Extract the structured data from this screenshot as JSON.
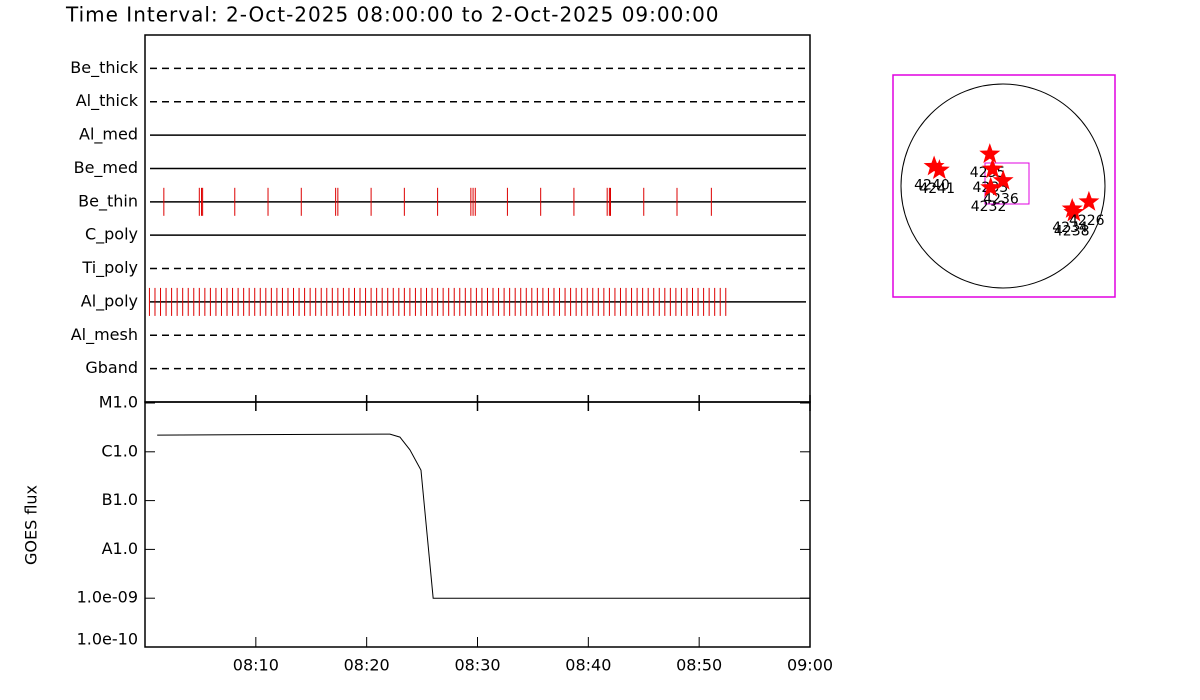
{
  "chart_data": [
    {
      "type": "timeline",
      "title": "Time Interval:  2-Oct-2025 08:00:00 to  2-Oct-2025 09:00:00",
      "xlim": [
        0,
        60
      ],
      "color": "#dd0000",
      "rows": [
        {
          "name": "Be_thick",
          "style": "dashed",
          "times": []
        },
        {
          "name": "Al_thick",
          "style": "dashed",
          "times": []
        },
        {
          "name": "Al_med",
          "style": "solid",
          "times": []
        },
        {
          "name": "Be_med",
          "style": "solid",
          "times": []
        },
        {
          "name": "Be_thin",
          "style": "solid",
          "times": [
            1.7,
            4.9,
            5.1,
            5.2,
            8.1,
            11.1,
            14.1,
            17.2,
            17.4,
            20.4,
            23.4,
            26.4,
            29.4,
            29.6,
            29.8,
            32.7,
            35.7,
            38.7,
            41.7,
            41.9,
            42.0,
            45.0,
            48.0,
            51.1
          ]
        },
        {
          "name": "C_poly",
          "style": "solid",
          "times": []
        },
        {
          "name": "Ti_poly",
          "style": "dashed",
          "times": []
        },
        {
          "name": "Al_poly",
          "style": "solid",
          "times": [
            0.4,
            0.9,
            1.4,
            1.9,
            2.4,
            2.9,
            3.4,
            3.9,
            4.4,
            4.9,
            5.4,
            5.9,
            6.4,
            6.9,
            7.4,
            7.9,
            8.4,
            8.9,
            9.4,
            9.9,
            10.4,
            10.9,
            11.4,
            11.9,
            12.4,
            12.9,
            13.4,
            13.9,
            14.4,
            14.9,
            15.4,
            15.9,
            16.4,
            16.9,
            17.4,
            17.9,
            18.4,
            18.9,
            19.4,
            19.9,
            20.4,
            20.9,
            21.4,
            21.9,
            22.4,
            22.9,
            23.4,
            23.9,
            24.4,
            24.9,
            25.4,
            25.9,
            26.4,
            26.9,
            27.4,
            27.9,
            28.4,
            28.9,
            29.4,
            29.9,
            30.4,
            30.9,
            31.4,
            31.9,
            32.4,
            32.9,
            33.4,
            33.9,
            34.4,
            34.9,
            35.4,
            35.9,
            36.4,
            36.9,
            37.4,
            37.9,
            38.4,
            38.9,
            39.4,
            39.9,
            40.4,
            40.9,
            41.4,
            41.9,
            42.4,
            42.9,
            43.4,
            43.9,
            44.4,
            44.9,
            45.4,
            45.9,
            46.4,
            46.9,
            47.4,
            47.9,
            48.4,
            48.9,
            49.4,
            49.9,
            50.4,
            50.9,
            51.4,
            51.9,
            52.4
          ]
        },
        {
          "name": "Al_mesh",
          "style": "dashed",
          "times": []
        },
        {
          "name": "Gband",
          "style": "dashed",
          "times": []
        }
      ]
    },
    {
      "type": "line",
      "y_label": "GOES flux",
      "color": "#000000",
      "log_y": true,
      "x": [
        1.1,
        10,
        22.1,
        23.0,
        23.9,
        24.9,
        26.0,
        60
      ],
      "values": [
        2.2e-06,
        2.25e-06,
        2.3e-06,
        2e-06,
        1.1e-06,
        4.2e-07,
        1e-09,
        1e-09
      ],
      "xlim": [
        0,
        60
      ],
      "xticks": [
        {
          "value": 10,
          "label": "08:10"
        },
        {
          "value": 20,
          "label": "08:20"
        },
        {
          "value": 30,
          "label": "08:30"
        },
        {
          "value": 40,
          "label": "08:40"
        },
        {
          "value": 50,
          "label": "08:50"
        },
        {
          "value": 60,
          "label": "09:00"
        }
      ],
      "ylim": [
        1e-10,
        1e-05
      ],
      "yticks": [
        {
          "value": 1e-05,
          "label": "M1.0"
        },
        {
          "value": 1e-06,
          "label": "C1.0"
        },
        {
          "value": 1e-07,
          "label": "B1.0"
        },
        {
          "value": 1e-08,
          "label": "A1.0"
        },
        {
          "value": 1e-09,
          "label": "1.0e-09"
        },
        {
          "value": 1e-10,
          "label": "1.0e-10"
        }
      ]
    },
    {
      "type": "map",
      "color": "#ff0000",
      "xlim": [
        -1180,
        1180
      ],
      "ylim": [
        -1180,
        1180
      ],
      "x": [
        -743,
        -687,
        -151,
        -122,
        -9,
        -141,
        725,
        743,
        903
      ],
      "values": [
        207,
        169,
        339,
        179,
        56,
        -19,
        -245,
        -282,
        -169
      ],
      "labels": [
        "4240",
        "4241",
        "4235",
        "4233",
        "4236",
        "4232",
        "4234",
        "4238",
        "4226"
      ]
    }
  ]
}
